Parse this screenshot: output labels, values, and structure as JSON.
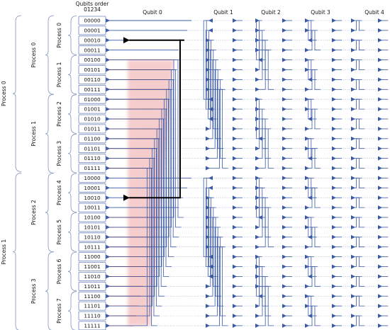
{
  "header": {
    "qubits_order_title": "Qubits order",
    "qubits_order_digits": "01234"
  },
  "qubit_headers": [
    "Qubit 0",
    "Qubit 1",
    "Qubit 2",
    "Qubit 3",
    "Qubit 4"
  ],
  "states": [
    "00000",
    "00001",
    "00010",
    "00011",
    "00100",
    "00101",
    "00110",
    "00111",
    "01000",
    "01001",
    "01010",
    "01011",
    "01100",
    "01101",
    "01110",
    "01111",
    "10000",
    "10001",
    "10010",
    "10011",
    "10100",
    "10101",
    "10110",
    "10111",
    "11000",
    "11001",
    "11010",
    "11011",
    "11100",
    "11101",
    "11110",
    "11111"
  ],
  "top_groups": [
    "Process 0",
    "Process 1"
  ],
  "mid_groups": [
    "Process 0",
    "Process 1",
    "Process 2",
    "Process 3"
  ],
  "inner_groups": [
    "Process 0",
    "Process 1",
    "Process 2",
    "Process 3",
    "Process 4",
    "Process 5",
    "Process 6",
    "Process 7"
  ],
  "colors": {
    "blue_arrow": "#3b5aa6",
    "red_arrow": "#c0312b",
    "dark_red_arrow": "#8a2a10",
    "highlight_arrow": "#000000",
    "red_glow": "#f3b9b9",
    "box_border": "#6f86b8",
    "brace": "#7f93bf",
    "dotted_line": "#9aa8c8"
  }
}
